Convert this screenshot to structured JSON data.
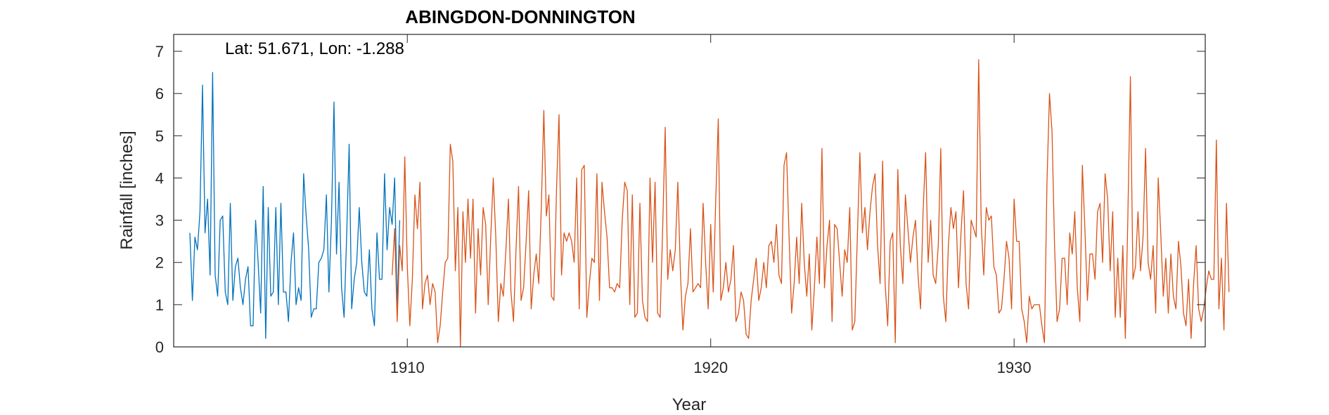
{
  "chart_data": {
    "type": "line",
    "title": "ABINGDON-DONNINGTON",
    "annotation": "Lat: 51.671, Lon: -1.288",
    "xlabel": "Year",
    "ylabel": "Rainfall [inches]",
    "xlim": [
      1902.3,
      1936.3
    ],
    "ylim": [
      0,
      7.4
    ],
    "xticks": [
      1910,
      1920,
      1930
    ],
    "yticks": [
      0,
      1,
      2,
      3,
      4,
      5,
      6,
      7
    ],
    "grid": false,
    "series": [
      {
        "color": "#0072bd",
        "x_start": 1902.8333,
        "x_step": 0.0833333,
        "values": [
          2.7,
          1.1,
          2.6,
          2.3,
          3.2,
          6.2,
          2.7,
          3.5,
          1.7,
          6.5,
          1.7,
          1.2,
          3.0,
          3.1,
          1.3,
          1.0,
          3.4,
          1.1,
          1.9,
          2.1,
          1.4,
          1.0,
          1.6,
          1.9,
          0.5,
          0.5,
          3.0,
          2.0,
          0.8,
          3.8,
          0.2,
          3.3,
          1.2,
          1.3,
          3.3,
          1.0,
          3.4,
          1.3,
          1.3,
          0.6,
          2.0,
          2.7,
          1.0,
          1.4,
          1.1,
          4.1,
          3.1,
          2.3,
          0.7,
          0.9,
          0.9,
          2.0,
          2.1,
          2.3,
          3.6,
          1.3,
          3.0,
          5.8,
          2.2,
          3.9,
          1.4,
          0.7,
          2.6,
          4.8,
          0.9,
          1.6,
          2.0,
          3.3,
          2.0,
          1.3,
          1.2,
          2.3,
          0.9,
          0.5,
          2.7,
          1.6,
          1.6,
          4.1,
          2.3,
          3.3,
          2.9,
          4.0,
          0.9,
          3.0
        ]
      },
      {
        "color": "#d95319",
        "x_start": 1909.5,
        "x_step": 0.0833333,
        "values": [
          1.7,
          2.8,
          0.6,
          2.4,
          1.8,
          4.5,
          1.9,
          0.5,
          1.6,
          3.6,
          2.8,
          3.9,
          0.9,
          1.5,
          1.7,
          1.0,
          1.5,
          1.3,
          0.1,
          0.5,
          1.3,
          2.0,
          2.1,
          4.8,
          4.4,
          1.8,
          3.3,
          0.0,
          3.2,
          2.0,
          3.5,
          2.1,
          3.5,
          0.8,
          2.8,
          1.7,
          3.3,
          2.9,
          1.0,
          2.6,
          4.0,
          2.6,
          0.6,
          1.5,
          1.2,
          2.3,
          3.5,
          1.3,
          0.6,
          2.3,
          3.8,
          1.1,
          1.4,
          2.5,
          3.7,
          0.9,
          1.7,
          2.2,
          1.5,
          3.3,
          5.6,
          3.1,
          3.6,
          1.2,
          1.1,
          3.7,
          5.5,
          1.7,
          2.7,
          2.5,
          2.7,
          2.5,
          2.0,
          4.0,
          0.9,
          4.2,
          4.3,
          0.7,
          1.5,
          2.1,
          2.0,
          4.1,
          1.1,
          3.9,
          3.2,
          2.6,
          1.4,
          1.4,
          1.3,
          1.5,
          1.4,
          3.0,
          3.9,
          3.7,
          1.0,
          3.6,
          0.7,
          0.8,
          3.4,
          1.1,
          0.7,
          0.6,
          4.0,
          2.0,
          3.9,
          0.8,
          0.7,
          2.8,
          5.2,
          1.6,
          2.3,
          1.8,
          2.3,
          3.9,
          1.8,
          0.4,
          1.2,
          1.5,
          2.8,
          1.3,
          1.4,
          1.5,
          1.4,
          3.4,
          2.0,
          0.9,
          2.9,
          1.3,
          3.5,
          5.4,
          1.1,
          1.4,
          2.0,
          1.3,
          1.6,
          2.4,
          0.6,
          0.8,
          1.3,
          1.1,
          0.3,
          0.2,
          1.1,
          1.6,
          2.1,
          1.1,
          1.4,
          2.0,
          1.4,
          2.4,
          2.5,
          2.0,
          2.9,
          1.7,
          1.5,
          4.3,
          4.6,
          2.6,
          0.8,
          1.5,
          2.6,
          1.5,
          3.4,
          2.0,
          1.2,
          2.2,
          0.4,
          1.4,
          2.6,
          1.5,
          4.7,
          1.4,
          2.4,
          3.0,
          0.6,
          2.9,
          2.8,
          2.0,
          1.2,
          2.3,
          2.0,
          3.3,
          0.4,
          0.6,
          2.6,
          4.6,
          2.7,
          3.3,
          2.3,
          3.2,
          3.8,
          4.1,
          2.4,
          1.5,
          4.4,
          1.5,
          0.5,
          2.5,
          2.7,
          0.1,
          4.2,
          2.4,
          1.5,
          3.6,
          2.8,
          2.0,
          2.6,
          3.0,
          1.7,
          0.9,
          3.2,
          4.6,
          2.0,
          3.0,
          1.7,
          1.5,
          2.4,
          4.7,
          1.2,
          0.6,
          2.4,
          3.3,
          2.8,
          3.2,
          1.4,
          2.7,
          3.7,
          1.5,
          0.9,
          3.0,
          2.8,
          2.6,
          6.8,
          2.9,
          1.7,
          3.3,
          3.0,
          3.1,
          1.9,
          1.7,
          0.8,
          0.9,
          1.6,
          2.5,
          2.1,
          0.9,
          3.5,
          2.5,
          2.5,
          0.9,
          0.6,
          0.1,
          1.2,
          0.9,
          1.0,
          1.0,
          1.0,
          0.5,
          0.1,
          3.9,
          6.0,
          5.1,
          2.4,
          0.6,
          0.9,
          2.1,
          2.1,
          1.0,
          2.7,
          2.2,
          3.2,
          1.4,
          0.6,
          4.3,
          2.8,
          1.1,
          2.2,
          2.2,
          1.6,
          3.2,
          3.4,
          2.0,
          4.1,
          3.5,
          1.8,
          3.2,
          0.7,
          2.1,
          0.7,
          2.4,
          0.2,
          3.1,
          6.4,
          1.6,
          1.9,
          3.2,
          1.8,
          2.6,
          4.7,
          2.0,
          1.6,
          2.4,
          0.8,
          4.0,
          2.7,
          1.2,
          2.1,
          0.8,
          2.2,
          1.2,
          0.9,
          2.5,
          1.9,
          0.8,
          0.5,
          1.6,
          0.2,
          1.5,
          2.4,
          0.9,
          0.6,
          0.9,
          1.4,
          1.8,
          1.6,
          1.6,
          4.9,
          0.9,
          2.1,
          0.4,
          3.4,
          1.3
        ]
      }
    ]
  }
}
